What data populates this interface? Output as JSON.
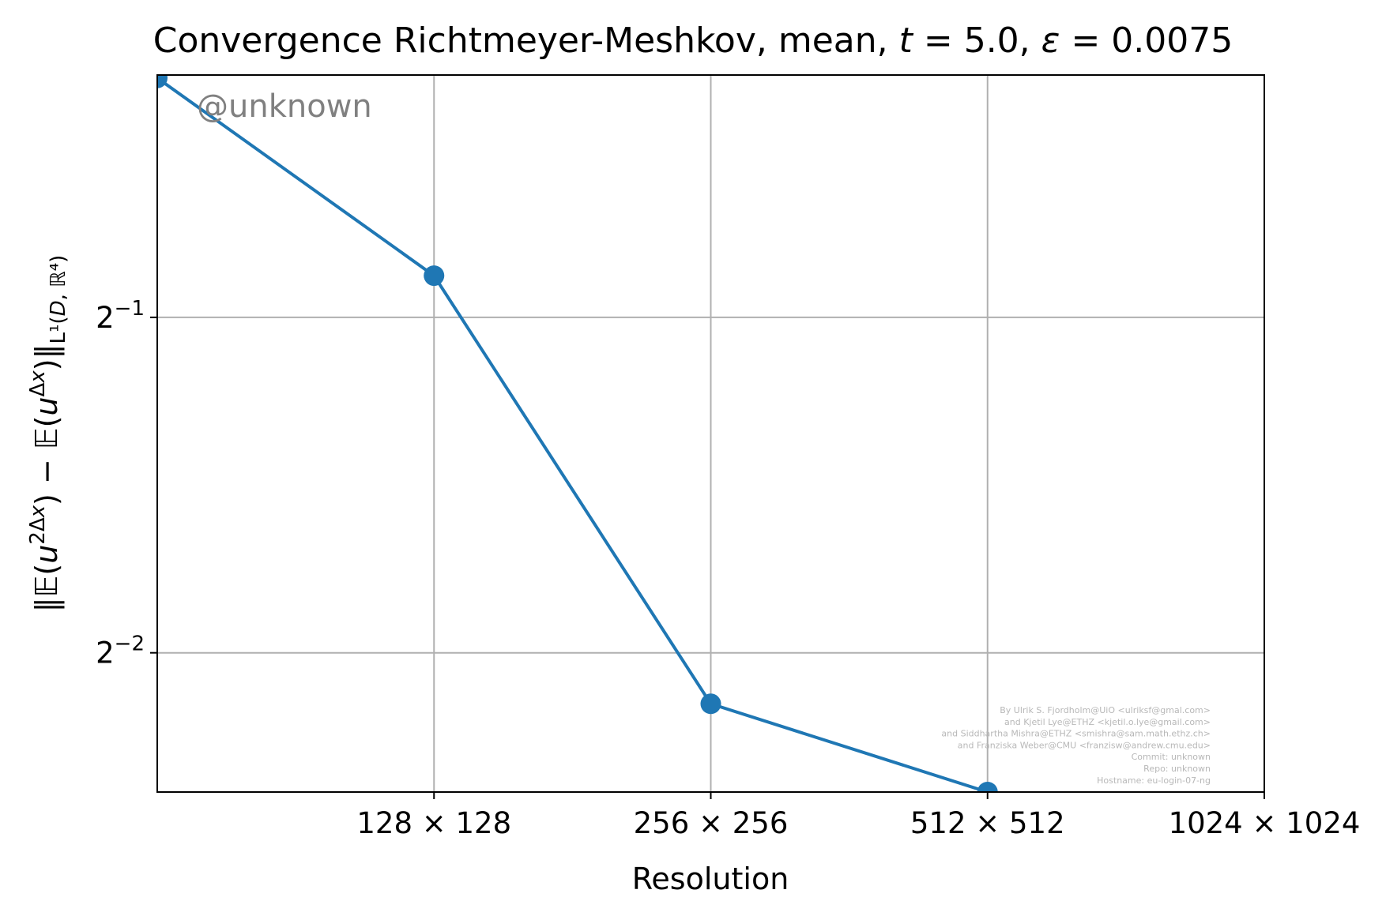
{
  "chart_data": {
    "type": "line",
    "title": "Convergence Richtmeyer-Meshkov, mean, t = 5.0, ε = 0.0075",
    "xlabel": "Resolution",
    "ylabel": "‖𝔼(u^{2Δx}) − 𝔼(u^{Δx})‖_{L¹(D,ℝ⁴)}",
    "x_scale": "log2",
    "y_scale": "log2",
    "x_ticks": [
      {
        "value": 128,
        "label": "128 × 128"
      },
      {
        "value": 256,
        "label": "256 × 256"
      },
      {
        "value": 512,
        "label": "512 × 512"
      },
      {
        "value": 1024,
        "label": "1024 × 1024"
      }
    ],
    "y_ticks": [
      {
        "value": 0.5,
        "base": "2",
        "exp": "−1"
      },
      {
        "value": 0.25,
        "base": "2",
        "exp": "−2"
      }
    ],
    "xlim": [
      64,
      1024
    ],
    "ylim": [
      0.1875,
      0.825
    ],
    "grid": true,
    "color": "#1f77b4",
    "series": [
      {
        "x": [
          64,
          128,
          256,
          512
        ],
        "y": [
          0.82,
          0.545,
          0.225,
          0.1875
        ]
      }
    ],
    "watermark": "@unknown",
    "credits": [
      "By Ulrik S. Fjordholm@UiO <ulriksf@gmal.com>",
      "and Kjetil Lye@ETHZ <kjetil.o.lye@gmail.com>",
      "and Siddhartha Mishra@ETHZ <smishra@sam.math.ethz.ch>",
      "and Franziska Weber@CMU <franzisw@andrew.cmu.edu>",
      "Commit: unknown",
      "Repo: unknown",
      "Hostname: eu-login-07-ng"
    ]
  }
}
